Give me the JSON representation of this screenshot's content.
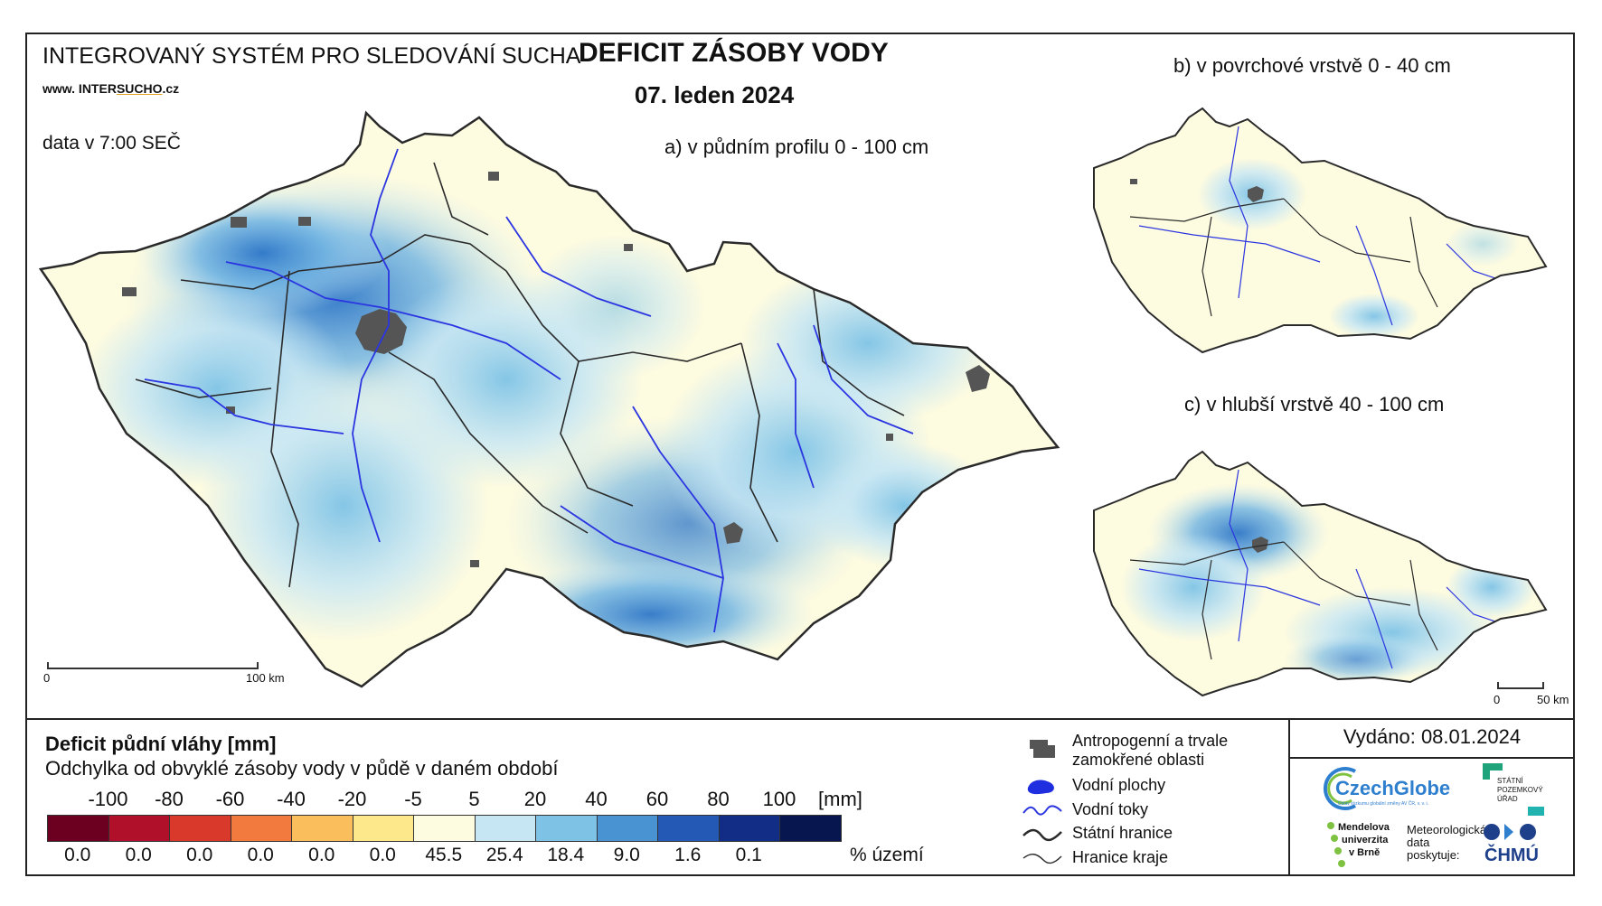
{
  "header": {
    "system_name": "INTEGROVANÝ SYSTÉM PRO SLEDOVÁNÍ SUCHA",
    "website_prefix": "www. INTER",
    "website_highlight": "SUCHO",
    "website_suffix": ".cz",
    "data_time": "data v 7:00 SEČ",
    "title": "DEFICIT ZÁSOBY VODY",
    "date": "07. leden 2024"
  },
  "maps": {
    "main_label": "a) v půdním profilu 0 - 100 cm",
    "b_label": "b) v povrchové vrstvě 0 - 40 cm",
    "c_label": "c) v hlubší vrstvě 40 - 100 cm",
    "main_scale": [
      "0",
      "100 km"
    ],
    "small_scale": [
      "0",
      "50 km"
    ]
  },
  "legend": {
    "title": "Deficit půdní vláhy  [mm]",
    "subtitle": "Odchylka od obvyklé zásoby vody v půdě v daném období",
    "unit": "[mm]",
    "pct_unit": "% území",
    "ticks": [
      "-100",
      "-80",
      "-60",
      "-40",
      "-20",
      "-5",
      "5",
      "20",
      "40",
      "60",
      "80",
      "100"
    ],
    "colors": [
      "#6b0020",
      "#b0102a",
      "#d8392b",
      "#f27a3e",
      "#fbbe5c",
      "#fde98c",
      "#fdfbe0",
      "#c6e6f4",
      "#7ec3e6",
      "#4a93d2",
      "#2459b5",
      "#122d85",
      "#081650"
    ],
    "percentages": [
      "0.0",
      "0.0",
      "0.0",
      "0.0",
      "0.0",
      "0.0",
      "45.5",
      "25.4",
      "18.4",
      "9.0",
      "1.6",
      "0.1",
      ""
    ]
  },
  "symbols": {
    "urban": "Antropogenní a trvale zamokřené oblasti",
    "water_bodies": "Vodní plochy",
    "rivers": "Vodní toky",
    "state_border": "Státní hranice",
    "region_border": "Hranice kraje"
  },
  "issued": "Vydáno: 08.01.2024",
  "logos": {
    "czechglobe": "CzechGlobe",
    "czechglobe_sub": "Ústav výzkumu globální změny AV ČR, v. v. i.",
    "spu": [
      "STÁTNÍ",
      "POZEMKOVÝ",
      "ÚŘAD"
    ],
    "mendel": [
      "Mendelova",
      "univerzita",
      "v Brně"
    ],
    "meteo": [
      "Meteorologická",
      "data",
      "poskytuje:"
    ],
    "chmu": "ČHMÚ"
  },
  "palette": {
    "background_land": "#fdfbe0",
    "urban": "#555555",
    "river": "#2b35e0",
    "border": "#2a2a2a"
  }
}
